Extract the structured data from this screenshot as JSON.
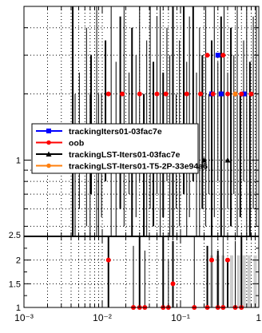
{
  "chart_data": [
    {
      "type": "scatter",
      "title": "",
      "xlabel": "",
      "ylabel": "",
      "xscale": "log",
      "yscale": "log",
      "xlim": [
        0.001,
        1
      ],
      "ylim": [
        0.45,
        5
      ],
      "grid": true,
      "y_tick_labels": [
        "1"
      ],
      "legend_position": "center-left",
      "series": [
        {
          "name": "trackingIters01-03fac7e",
          "color": "#0000ff",
          "marker": "square",
          "points": [
            [
              0.25,
              2.0
            ],
            [
              0.3,
              3.0
            ],
            [
              0.33,
              2.0
            ],
            [
              0.65,
              2.0
            ]
          ]
        },
        {
          "name": "oob",
          "color": "#ff0000",
          "marker": "circle",
          "points": [
            [
              0.012,
              2.0
            ],
            [
              0.018,
              2.0
            ],
            [
              0.03,
              2.0
            ],
            [
              0.05,
              2.0
            ],
            [
              0.065,
              2.0
            ],
            [
              0.12,
              2.0
            ],
            [
              0.18,
              2.0
            ],
            [
              0.22,
              3.0
            ],
            [
              0.26,
              2.0
            ],
            [
              0.35,
              3.0
            ],
            [
              0.4,
              2.0
            ],
            [
              0.5,
              2.0
            ],
            [
              0.6,
              2.0
            ],
            [
              0.8,
              2.0
            ]
          ]
        },
        {
          "name": "trackingLST-Iters01-03fac7e",
          "color": "#000000",
          "marker": "triangle",
          "points": [
            [
              0.2,
              1.0
            ],
            [
              0.4,
              1.0
            ]
          ]
        },
        {
          "name": "trackingLST-Iters01-T5-2P-33e94a6",
          "color": "#ff7f0e",
          "marker": "circle",
          "points": [
            [
              0.5,
              2.0
            ]
          ]
        }
      ]
    },
    {
      "type": "scatter",
      "title": "",
      "xlabel": "",
      "ylabel": "",
      "xscale": "log",
      "xlim": [
        0.001,
        1
      ],
      "ylim": [
        1,
        2.5
      ],
      "grid": true,
      "x_tick_labels": [
        "10⁻³",
        "10⁻²",
        "10⁻¹",
        "1"
      ],
      "y_tick_labels": [
        "1",
        "1.5",
        "2",
        "2.5"
      ],
      "series": [
        {
          "name": "oob",
          "color": "#ff0000",
          "marker": "circle",
          "points": [
            [
              0.012,
              2.0
            ],
            [
              0.025,
              1.0
            ],
            [
              0.03,
              1.0
            ],
            [
              0.035,
              1.0
            ],
            [
              0.06,
              1.0
            ],
            [
              0.07,
              1.0
            ],
            [
              0.08,
              1.5
            ],
            [
              0.15,
              1.0
            ],
            [
              0.22,
              1.0
            ],
            [
              0.25,
              2.0
            ],
            [
              0.3,
              1.0
            ],
            [
              0.35,
              1.0
            ],
            [
              0.4,
              2.0
            ],
            [
              0.5,
              1.0
            ],
            [
              0.6,
              1.0
            ]
          ]
        }
      ]
    }
  ]
}
